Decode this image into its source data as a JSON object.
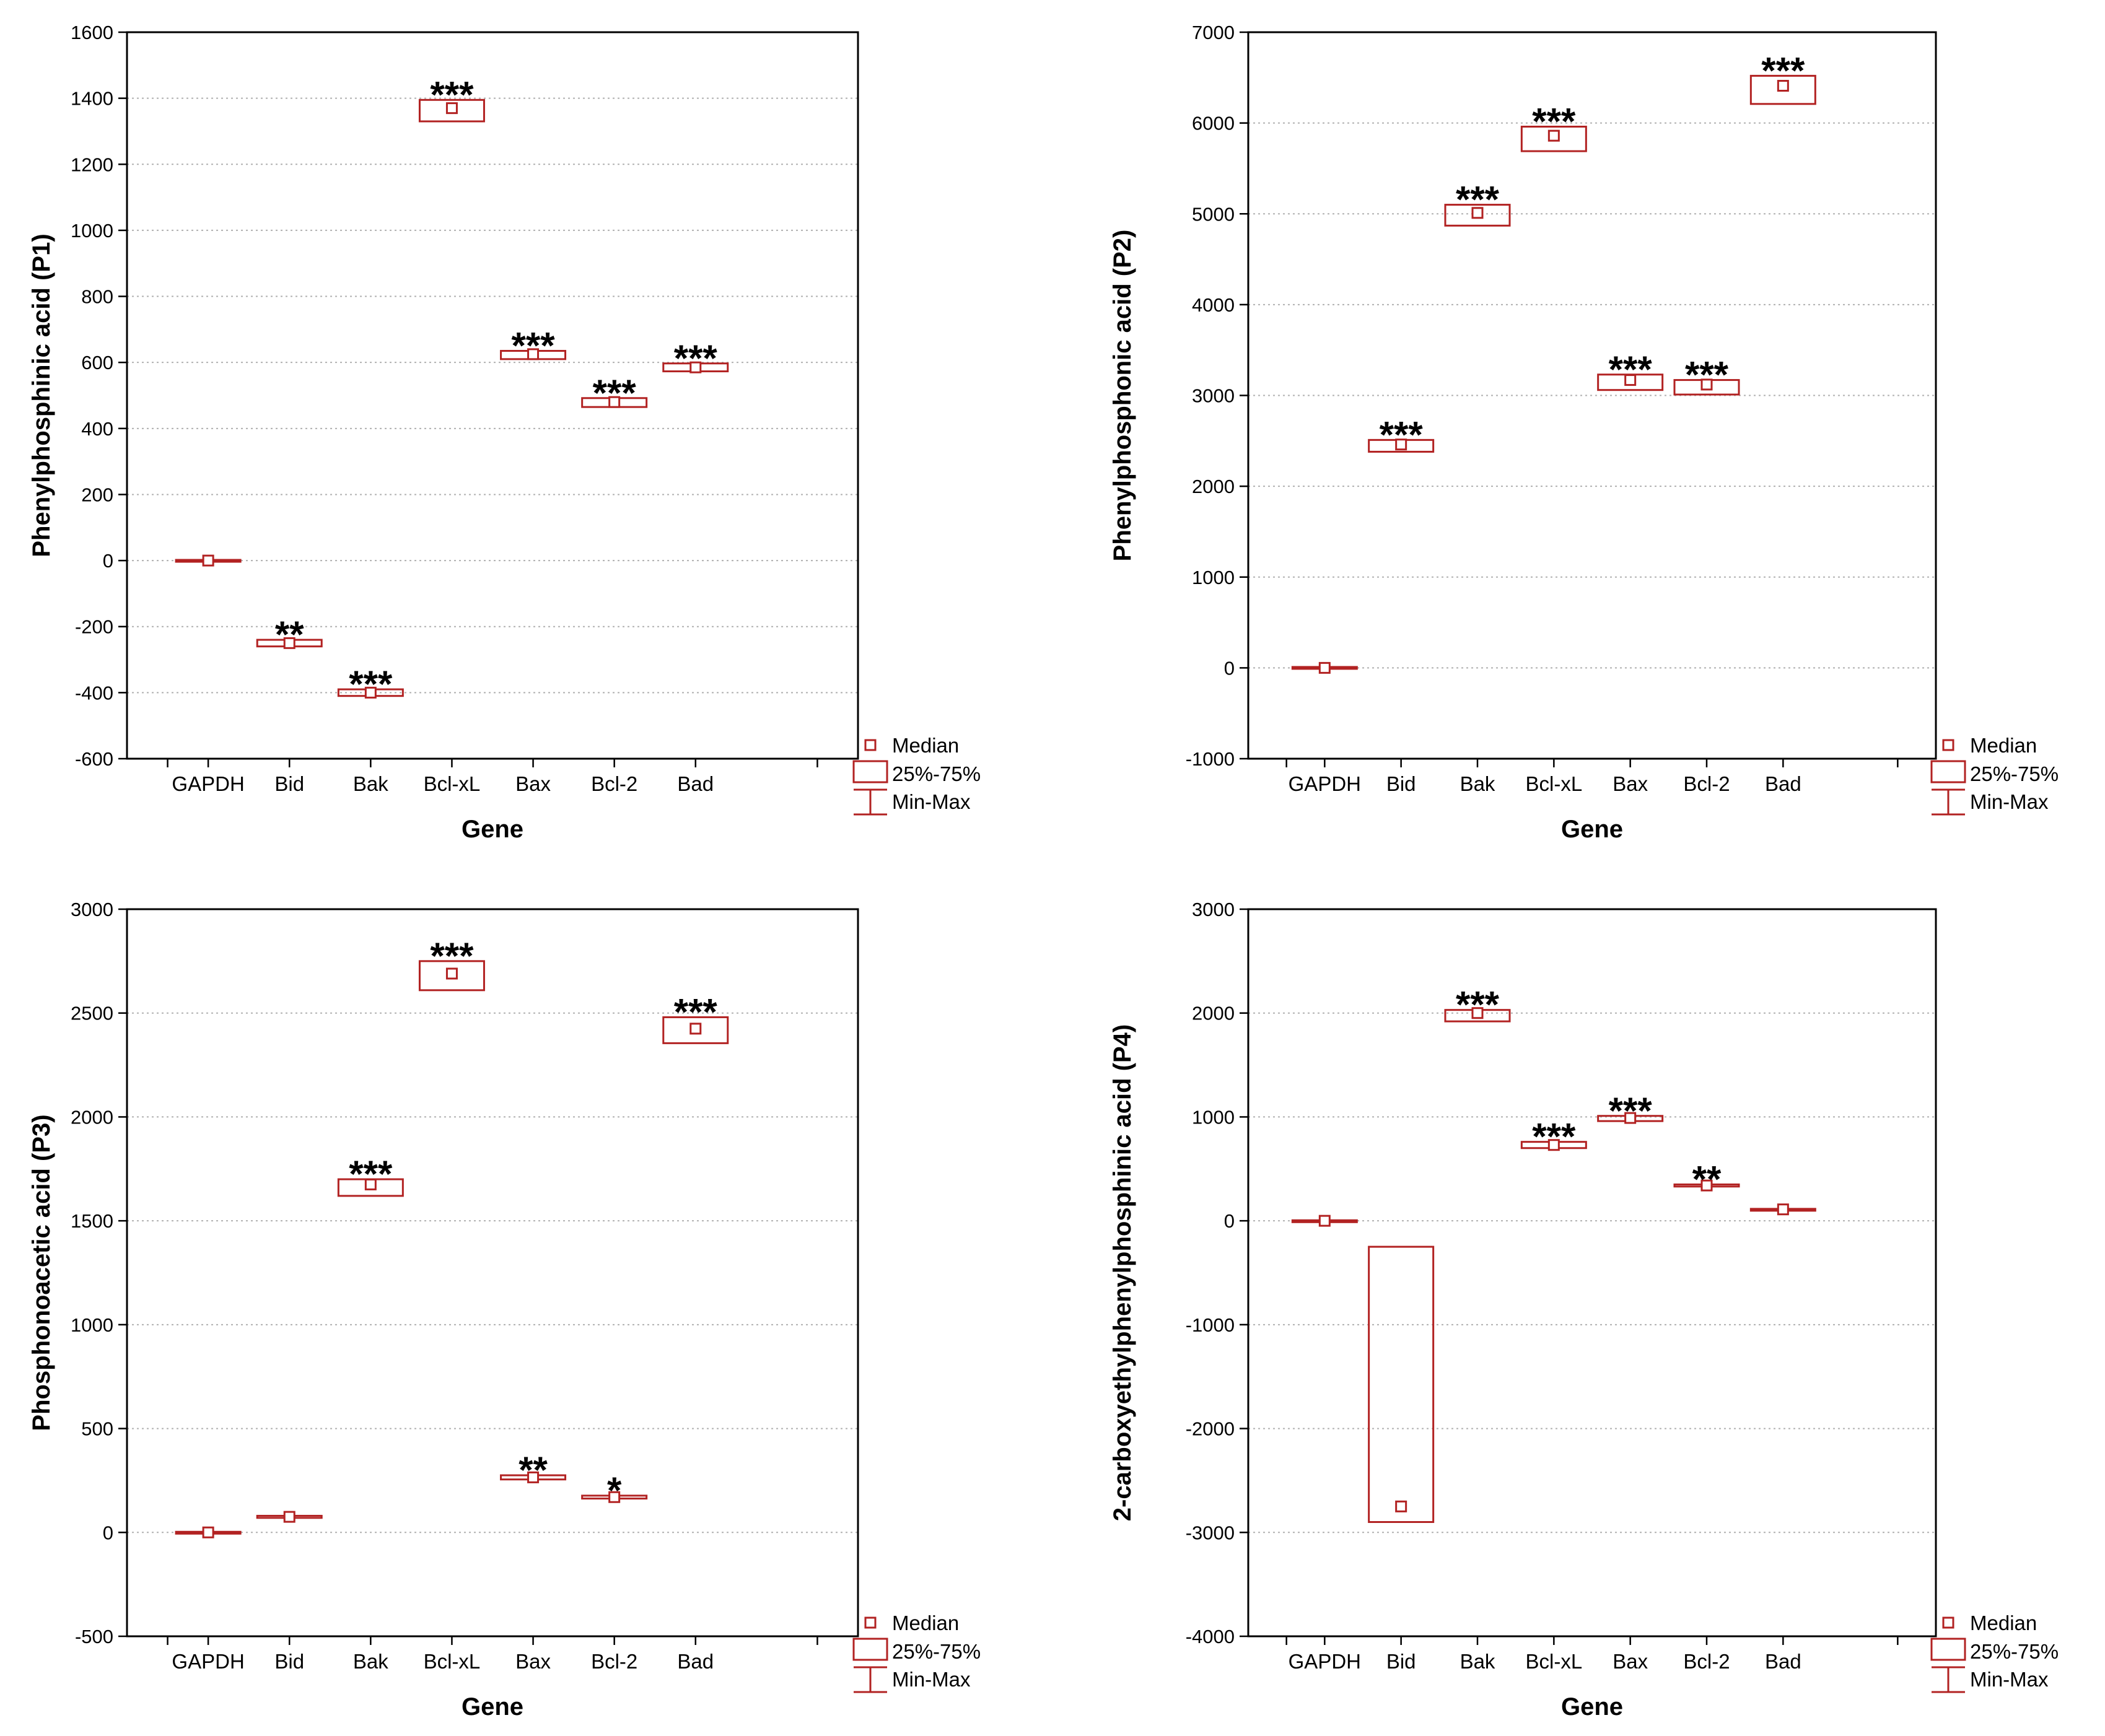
{
  "colors": {
    "series": "#b22222",
    "axis": "#000000",
    "grid": "#b0b0b0"
  },
  "legend": {
    "median": "Median",
    "box": "25%-75%",
    "whisker": "Min-Max"
  },
  "chart_data": [
    {
      "type": "box",
      "xlabel": "Gene",
      "ylabel": "Phenylphosphinic acid (P1)",
      "ylim": [
        -600,
        1600
      ],
      "yticks": [
        -600,
        -400,
        -200,
        0,
        200,
        400,
        600,
        800,
        1000,
        1200,
        1400,
        1600
      ],
      "ytick_labels": [
        "-600",
        "-400",
        "-200",
        "0",
        "200",
        "400",
        "600",
        "800",
        "1000",
        "1200",
        "1400",
        "1600"
      ],
      "categories": [
        "GAPDH",
        "Bid",
        "Bak",
        "Bcl-xL",
        "Bax",
        "Bcl-2",
        "Bad"
      ],
      "median": [
        0,
        -250,
        -400,
        1370,
        625,
        480,
        585
      ],
      "q1": [
        -2,
        -260,
        -410,
        1330,
        610,
        465,
        573
      ],
      "q3": [
        2,
        -240,
        -390,
        1395,
        635,
        492,
        597
      ],
      "min": [
        -2,
        -260,
        -410,
        1330,
        610,
        465,
        573
      ],
      "max": [
        2,
        -240,
        -390,
        1395,
        635,
        492,
        597
      ],
      "significance": [
        "",
        "**",
        "***",
        "***",
        "***",
        "***",
        "***"
      ]
    },
    {
      "type": "box",
      "xlabel": "Gene",
      "ylabel": "Phenylphosphonic acid (P2)",
      "ylim": [
        -1000,
        7000
      ],
      "yticks": [
        -1000,
        0,
        1000,
        2000,
        3000,
        4000,
        5000,
        6000,
        7000
      ],
      "ytick_labels": [
        "-1000",
        "0",
        "1000",
        "2000",
        "3000",
        "4000",
        "5000",
        "6000",
        "7000"
      ],
      "categories": [
        "GAPDH",
        "Bid",
        "Bak",
        "Bcl-xL",
        "Bax",
        "Bcl-2",
        "Bad"
      ],
      "median": [
        0,
        2460,
        5010,
        5860,
        3170,
        3120,
        6410
      ],
      "q1": [
        -10,
        2380,
        4870,
        5690,
        3060,
        3010,
        6210
      ],
      "q3": [
        10,
        2510,
        5100,
        5960,
        3230,
        3170,
        6520
      ],
      "min": [
        -10,
        2380,
        4870,
        5690,
        3060,
        3010,
        6210
      ],
      "max": [
        10,
        2510,
        5100,
        5960,
        3230,
        3170,
        6520
      ],
      "significance": [
        "",
        "***",
        "***",
        "***",
        "***",
        "***",
        "***"
      ]
    },
    {
      "type": "box",
      "xlabel": "Gene",
      "ylabel": "Phosphonoacetic acid (P3)",
      "ylim": [
        -500,
        3000
      ],
      "yticks": [
        -500,
        0,
        500,
        1000,
        1500,
        2000,
        2500,
        3000
      ],
      "ytick_labels": [
        "-500",
        "0",
        "500",
        "1000",
        "1500",
        "2000",
        "2500",
        "3000"
      ],
      "categories": [
        "GAPDH",
        "Bid",
        "Bak",
        "Bcl-xL",
        "Bax",
        "Bcl-2",
        "Bad"
      ],
      "median": [
        0,
        75,
        1675,
        2690,
        265,
        170,
        2425
      ],
      "q1": [
        -3,
        70,
        1620,
        2610,
        255,
        163,
        2355
      ],
      "q3": [
        3,
        80,
        1700,
        2750,
        275,
        177,
        2480
      ],
      "min": [
        -3,
        70,
        1620,
        2610,
        255,
        163,
        2355
      ],
      "max": [
        3,
        80,
        1700,
        2750,
        275,
        177,
        2480
      ],
      "significance": [
        "",
        "",
        "***",
        "***",
        "**",
        "*",
        "***"
      ]
    },
    {
      "type": "box",
      "xlabel": "Gene",
      "ylabel": "2-carboxyethylphenylphosphinic acid (P4)",
      "ylim": [
        -4000,
        3000
      ],
      "yticks": [
        -4000,
        -3000,
        -2000,
        -1000,
        0,
        1000,
        2000,
        3000
      ],
      "ytick_labels": [
        "-4000",
        "-3000",
        "-2000",
        "-1000",
        "0",
        "1000",
        "2000",
        "3000"
      ],
      "categories": [
        "GAPDH",
        "Bid",
        "Bak",
        "Bcl-xL",
        "Bax",
        "Bcl-2",
        "Bad"
      ],
      "median": [
        0,
        -2750,
        2000,
        730,
        990,
        340,
        110
      ],
      "q1": [
        -5,
        -2900,
        1920,
        700,
        960,
        330,
        105
      ],
      "q3": [
        5,
        -250,
        2030,
        760,
        1010,
        350,
        115
      ],
      "min": [
        -5,
        -2900,
        1920,
        700,
        960,
        330,
        105
      ],
      "max": [
        5,
        -250,
        2030,
        760,
        1010,
        350,
        115
      ],
      "significance": [
        "",
        "",
        "***",
        "***",
        "***",
        "**",
        ""
      ]
    }
  ]
}
